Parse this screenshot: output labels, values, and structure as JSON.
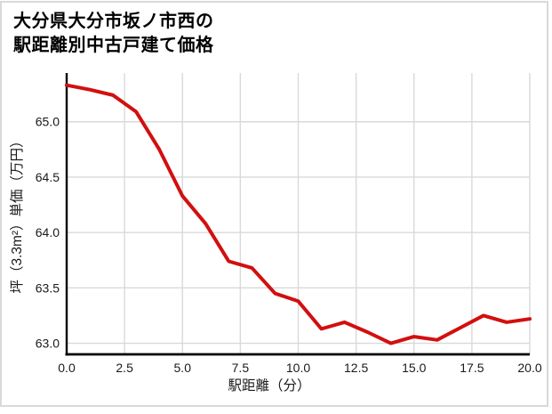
{
  "chart": {
    "title_line1": "大分県大分市坂ノ市西の",
    "title_line2": "駅距離別中古戸建て価格"
  },
  "chart_data": {
    "type": "line",
    "title": "大分県大分市坂ノ市西の駅距離別中古戸建て価格",
    "xlabel": "駅距離（分）",
    "ylabel": "坪（3.3m²）単価（万円）",
    "x": [
      0,
      1,
      2,
      3,
      4,
      5,
      6,
      7,
      8,
      9,
      10,
      11,
      12,
      13,
      14,
      15,
      16,
      17,
      18,
      19,
      20
    ],
    "y": [
      65.33,
      65.29,
      65.24,
      65.09,
      64.75,
      64.33,
      64.08,
      63.74,
      63.68,
      63.45,
      63.38,
      63.13,
      63.19,
      63.1,
      63.0,
      63.06,
      63.03,
      63.14,
      63.25,
      63.19,
      63.22
    ],
    "x_ticks": [
      0.0,
      2.5,
      5.0,
      7.5,
      10.0,
      12.5,
      15.0,
      17.5,
      20.0
    ],
    "x_tick_labels": [
      "0.0",
      "2.5",
      "5.0",
      "7.5",
      "10.0",
      "12.5",
      "15.0",
      "17.5",
      "20.0"
    ],
    "y_ticks": [
      63.0,
      63.5,
      64.0,
      64.5,
      65.0
    ],
    "y_tick_labels": [
      "63.0",
      "63.5",
      "64.0",
      "64.5",
      "65.0"
    ],
    "xlim": [
      0,
      20
    ],
    "ylim": [
      62.9,
      65.44
    ],
    "grid": true,
    "legend": "none",
    "line_color": "#d20f0f",
    "grid_color": "#d9d9d9",
    "axis_color": "#000000"
  }
}
